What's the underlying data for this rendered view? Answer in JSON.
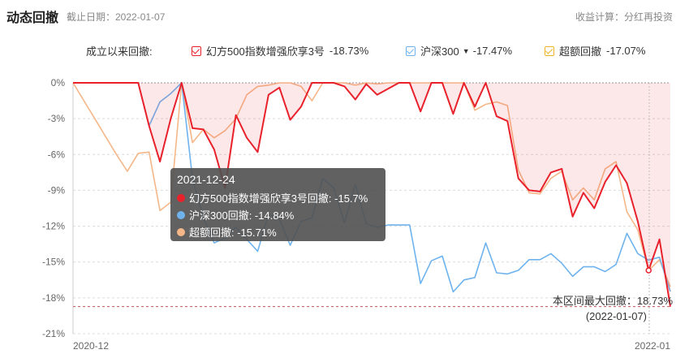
{
  "header": {
    "title": "动态回撤",
    "cutoff": "截止日期：2022-01-07",
    "calc_method": "收益计算：分红再投资"
  },
  "legend": {
    "lead": "成立以来回撤:",
    "items": [
      {
        "name": "幻方500指数增强欣享3号",
        "value": "-18.73%",
        "color": "#e8212b"
      },
      {
        "name": "沪深300",
        "value": "-17.47%",
        "color": "#6fb3ee",
        "dropdown": "▼"
      },
      {
        "name": "超额回撤",
        "value": "-17.07%",
        "color": "#f0b429"
      }
    ]
  },
  "tooltip": {
    "date": "2021-12-24",
    "rows": [
      {
        "label": "幻方500指数增强欣享3号回撤: -15.7%",
        "color": "#e8212b"
      },
      {
        "label": "沪深300回撤: -14.84%",
        "color": "#6fb3ee"
      },
      {
        "label": "超额回撤: -15.71%",
        "color": "#f5b788"
      }
    ]
  },
  "max_drawdown": {
    "label": "本区间最大回撤：18.73%",
    "date": "(2022-01-07)"
  },
  "chart_data": {
    "type": "line",
    "x_start_label": "2020-12",
    "x_end_label": "2022-01",
    "ylim": [
      -21,
      0
    ],
    "yticks": [
      "0%",
      "-3%",
      "-6%",
      "-9%",
      "-12%",
      "-15%",
      "-18%",
      "-21%"
    ],
    "series": [
      {
        "name": "幻方500指数增强欣享3号",
        "color": "#e8212b",
        "fill": "rgba(232,33,43,0.10)",
        "values": [
          0,
          0,
          0,
          0,
          0,
          0,
          0,
          -3.6,
          -6.6,
          -3.0,
          0,
          -3.8,
          -3.9,
          -5.6,
          -8.8,
          -2.7,
          -4.6,
          -5.8,
          -1.0,
          -0.4,
          -3.1,
          -2.0,
          0,
          0,
          0,
          -0.3,
          -1.4,
          -0.1,
          -1.0,
          -0.5,
          0,
          0,
          -2.4,
          0,
          0,
          -2.6,
          0,
          -2.0,
          0,
          -2.8,
          -3.2,
          -8.0,
          -9.0,
          -9.1,
          -7.5,
          -7.2,
          -11.2,
          -9.2,
          -10.5,
          -8.3,
          -6.9,
          -8.4,
          -11.6,
          -15.7,
          -13.1,
          -18.73
        ]
      },
      {
        "name": "沪深300",
        "color": "#6fb3ee",
        "fill": "none",
        "values": [
          0,
          0,
          0,
          0,
          0,
          0,
          0,
          -3.6,
          -1.6,
          -0.9,
          0,
          -8.0,
          -11.3,
          -13.4,
          -13.0,
          -12.1,
          -13.1,
          -14.1,
          -11.0,
          -11.4,
          -13.6,
          -11.6,
          -11.3,
          -8.0,
          -8.8,
          -11.7,
          -8.5,
          -11.8,
          -12.1,
          -11.9,
          -11.9,
          -11.9,
          -16.8,
          -14.9,
          -14.5,
          -17.5,
          -16.5,
          -16.3,
          -13.4,
          -15.9,
          -16.0,
          -15.7,
          -14.8,
          -14.8,
          -14.3,
          -15.1,
          -16.2,
          -15.4,
          -15.4,
          -15.8,
          -15.2,
          -12.6,
          -14.3,
          -14.84,
          -14.6,
          -17.47
        ]
      },
      {
        "name": "超额回撤",
        "color": "#f5b788",
        "fill": "none",
        "values": [
          0,
          -1.5,
          -3.0,
          -4.5,
          -6.0,
          -7.4,
          -5.9,
          -5.8,
          -10.7,
          -10.0,
          0,
          -5.0,
          -3.9,
          -4.6,
          -4.0,
          -3.0,
          -1.0,
          -0.3,
          -0.2,
          0,
          0,
          -0.3,
          -1.5,
          0,
          0,
          0,
          -0.2,
          0,
          -0.1,
          0,
          0,
          0,
          0,
          0,
          0,
          0,
          0,
          -2.3,
          -1.8,
          -1.6,
          -1.9,
          -7.3,
          -9.2,
          -9.3,
          -8.0,
          -7.4,
          -9.8,
          -8.8,
          -9.8,
          -7.2,
          -6.6,
          -10.8,
          -12.3,
          -15.71,
          -14.8,
          -17.07
        ]
      }
    ],
    "grid": "horizontal-dashed",
    "legend_position": "top"
  }
}
